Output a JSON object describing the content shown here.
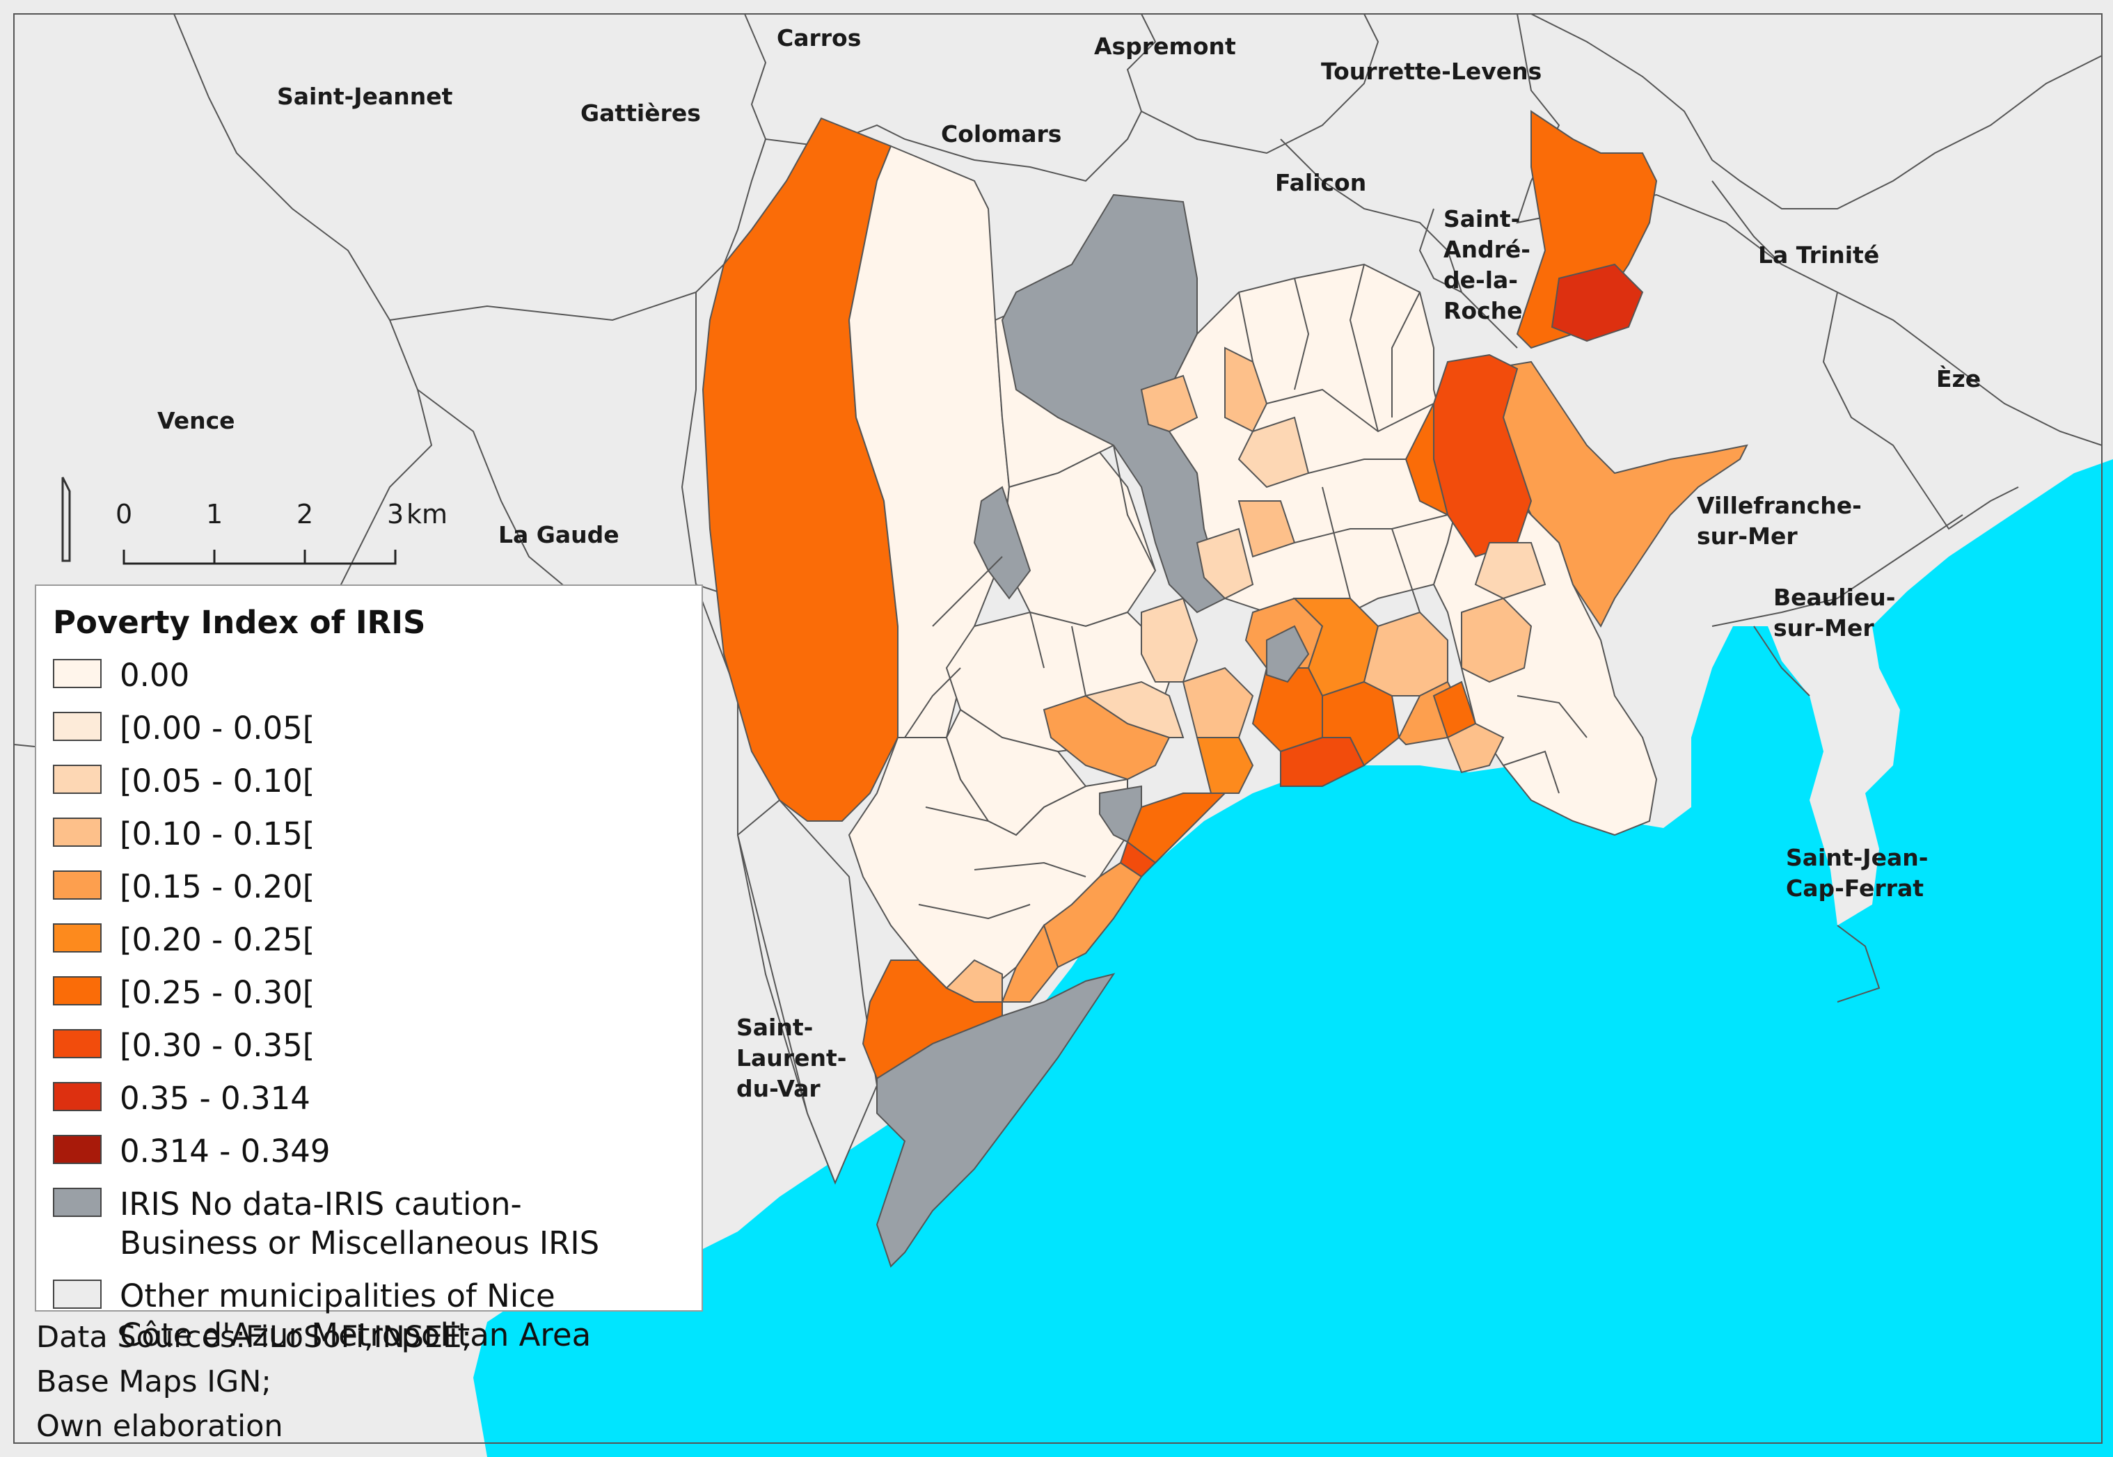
{
  "map": {
    "colors": {
      "sea": "#00e5ff",
      "land": "#ececec",
      "boundary": "#555555",
      "no_data": "#9aa0a6",
      "q0": "#fff5eb",
      "q1": "#fdebd9",
      "q2": "#fdd7b4",
      "q3": "#fdc08a",
      "q4": "#fd9f4e",
      "q5": "#fd8a1d",
      "q6": "#fa6c08",
      "q7": "#f24c0c",
      "q8": "#dd3010",
      "q9": "#a81a0a"
    },
    "places": [
      {
        "id": "carros",
        "name": "Carros"
      },
      {
        "id": "aspremont",
        "name": "Aspremont"
      },
      {
        "id": "tourrette",
        "name": "Tourrette-Levens"
      },
      {
        "id": "saint-jeannet",
        "name": "Saint-Jeannet"
      },
      {
        "id": "gattieres",
        "name": "Gattières"
      },
      {
        "id": "colomars",
        "name": "Colomars"
      },
      {
        "id": "falicon",
        "name": "Falicon"
      },
      {
        "id": "saint-andre",
        "lines": [
          "Saint-",
          "André-",
          "de-la-",
          "Roche"
        ]
      },
      {
        "id": "la-trinite",
        "name": "La Trinité"
      },
      {
        "id": "eze",
        "name": "Èze"
      },
      {
        "id": "vence",
        "name": "Vence"
      },
      {
        "id": "la-gaude",
        "name": "La Gaude"
      },
      {
        "id": "villefranche",
        "lines": [
          "Villefranche-",
          "sur-Mer"
        ]
      },
      {
        "id": "beaulieu",
        "lines": [
          "Beaulieu-",
          "sur-Mer"
        ]
      },
      {
        "id": "saint-jean",
        "lines": [
          "Saint-Jean-",
          "Cap-Ferrat"
        ]
      },
      {
        "id": "saint-laurent",
        "lines": [
          "Saint-",
          "Laurent-",
          "du-Var"
        ]
      }
    ],
    "scale_bar": {
      "ticks": [
        "0",
        "1",
        "2",
        "3"
      ],
      "unit": "km"
    }
  },
  "legend": {
    "title": "Poverty Index of IRIS",
    "items": [
      {
        "label": "0.00",
        "color": "#fff5eb"
      },
      {
        "label": "[0.00 - 0.05[",
        "color": "#fdebd9"
      },
      {
        "label": "[0.05 - 0.10[",
        "color": "#fdd7b4"
      },
      {
        "label": "[0.10 - 0.15[",
        "color": "#fdc08a"
      },
      {
        "label": "[0.15 - 0.20[",
        "color": "#fd9f4e"
      },
      {
        "label": "[0.20 - 0.25[",
        "color": "#fd8a1d"
      },
      {
        "label": "[0.25 - 0.30[",
        "color": "#fa6c08"
      },
      {
        "label": "[0.30 - 0.35[",
        "color": "#f24c0c"
      },
      {
        "label": "0.35 - 0.314",
        "color": "#dd3010"
      },
      {
        "label": "0.314 - 0.349",
        "color": "#a81a0a"
      },
      {
        "label": "IRIS No data-IRIS caution-\nBusiness or Miscellaneous IRIS",
        "color": "#9aa0a6"
      },
      {
        "label": "Other municipalities of Nice\nCôte d'Azur Metropolitan Area",
        "color": "#ececec"
      }
    ]
  },
  "sources": {
    "line1": "Data Sources:FiLoSoFi,INSEE;",
    "line2": "Base Maps IGN;",
    "line3": "Own elaboration"
  }
}
